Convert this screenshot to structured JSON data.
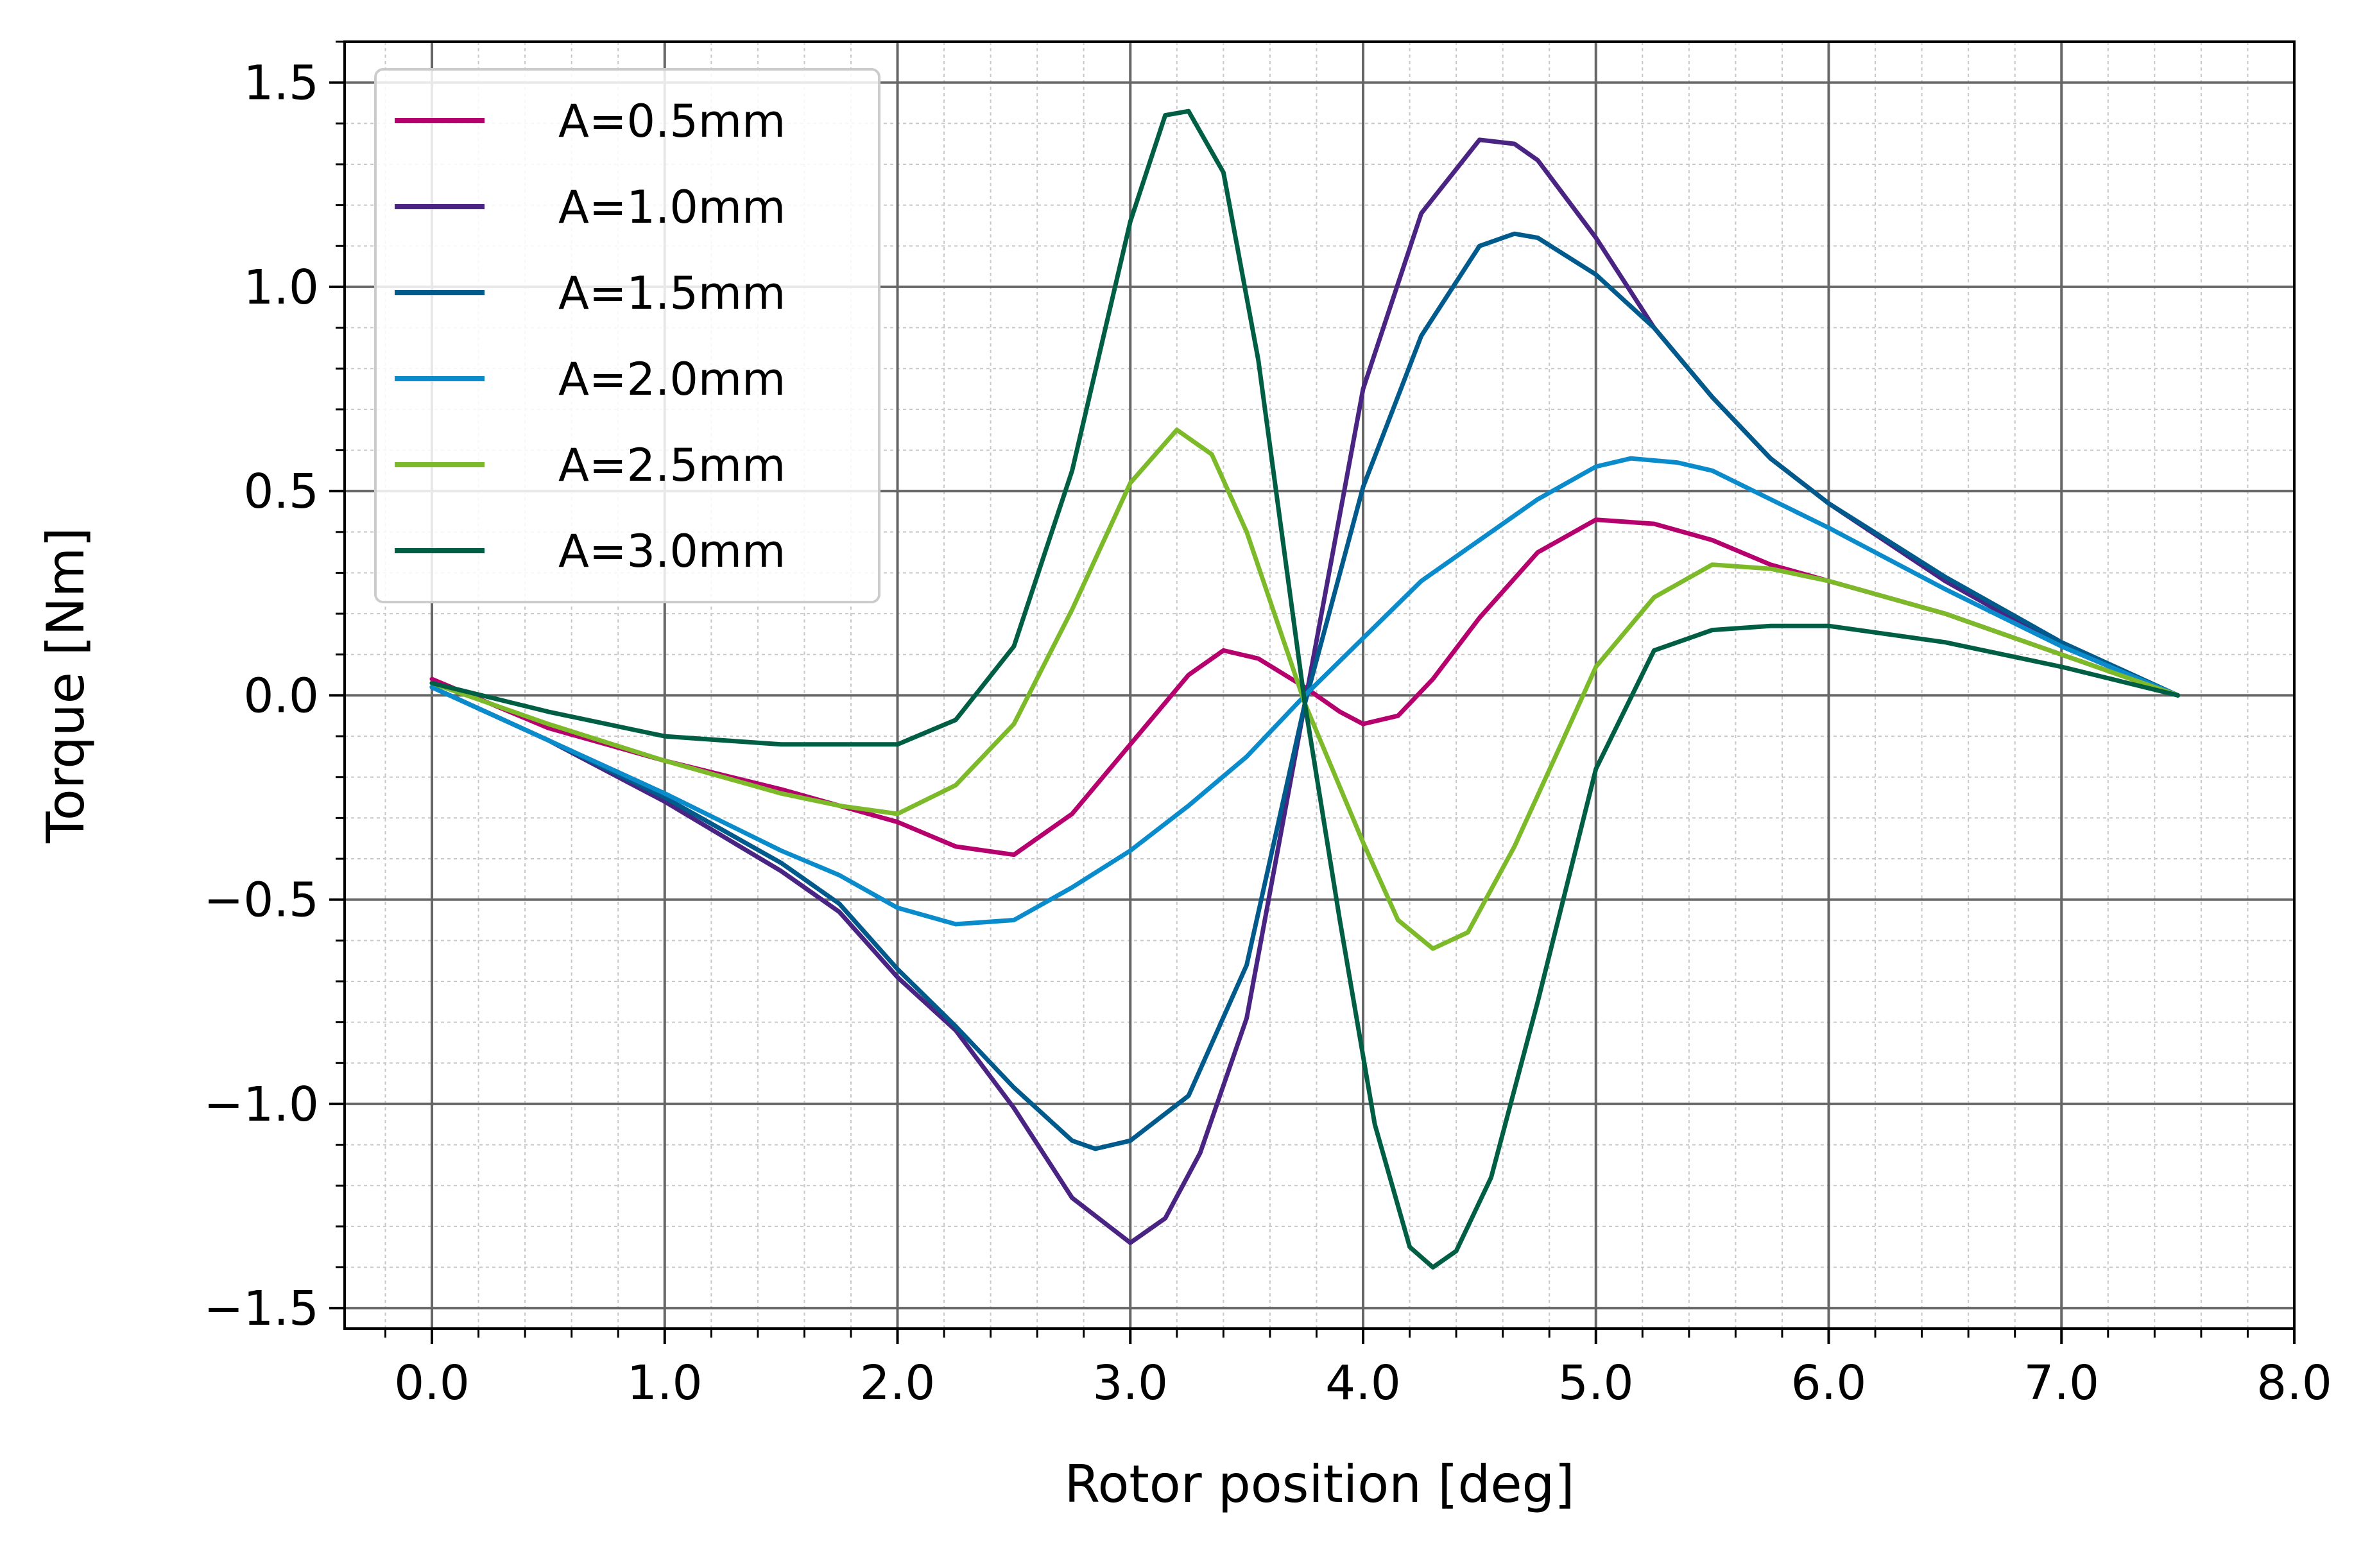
{
  "chart_data": {
    "type": "line",
    "xlabel": "Rotor position [deg]",
    "ylabel": "Torque [Nm]",
    "xlim": [
      -0.375,
      8.0
    ],
    "ylim": [
      -1.55,
      1.6
    ],
    "xticks": [
      "0.0",
      "1.0",
      "2.0",
      "3.0",
      "4.0",
      "5.0",
      "6.0",
      "7.0",
      "8.0"
    ],
    "yticks": [
      "−1.5",
      "−1.0",
      "−0.5",
      "0.0",
      "0.5",
      "1.0",
      "1.5"
    ],
    "grid": true,
    "minor_grid": true,
    "legend_position": "upper-left",
    "series": [
      {
        "name": "A=0.5mm",
        "color": "#b5006e",
        "points": [
          [
            0,
            0.04
          ],
          [
            0.5,
            -0.08
          ],
          [
            1.0,
            -0.16
          ],
          [
            1.5,
            -0.23
          ],
          [
            2.0,
            -0.31
          ],
          [
            2.25,
            -0.37
          ],
          [
            2.5,
            -0.39
          ],
          [
            2.75,
            -0.29
          ],
          [
            3.0,
            -0.12
          ],
          [
            3.25,
            0.05
          ],
          [
            3.4,
            0.11
          ],
          [
            3.55,
            0.09
          ],
          [
            3.75,
            0.02
          ],
          [
            3.9,
            -0.04
          ],
          [
            4.0,
            -0.07
          ],
          [
            4.15,
            -0.05
          ],
          [
            4.3,
            0.04
          ],
          [
            4.5,
            0.19
          ],
          [
            4.75,
            0.35
          ],
          [
            5.0,
            0.43
          ],
          [
            5.25,
            0.42
          ],
          [
            5.5,
            0.38
          ],
          [
            5.75,
            0.32
          ],
          [
            6.0,
            0.28
          ],
          [
            6.5,
            0.2
          ],
          [
            7.0,
            0.1
          ],
          [
            7.5,
            0.0
          ]
        ]
      },
      {
        "name": "A=1.0mm",
        "color": "#4a2482",
        "points": [
          [
            0,
            0.02
          ],
          [
            0.5,
            -0.11
          ],
          [
            1.0,
            -0.26
          ],
          [
            1.5,
            -0.43
          ],
          [
            1.75,
            -0.53
          ],
          [
            2.0,
            -0.69
          ],
          [
            2.25,
            -0.82
          ],
          [
            2.5,
            -1.01
          ],
          [
            2.75,
            -1.23
          ],
          [
            3.0,
            -1.34
          ],
          [
            3.15,
            -1.28
          ],
          [
            3.3,
            -1.12
          ],
          [
            3.5,
            -0.79
          ],
          [
            3.75,
            -0.02
          ],
          [
            4.0,
            0.75
          ],
          [
            4.25,
            1.18
          ],
          [
            4.5,
            1.36
          ],
          [
            4.65,
            1.35
          ],
          [
            4.75,
            1.31
          ],
          [
            5.0,
            1.12
          ],
          [
            5.25,
            0.9
          ],
          [
            5.5,
            0.73
          ],
          [
            5.75,
            0.58
          ],
          [
            6.0,
            0.47
          ],
          [
            6.5,
            0.28
          ],
          [
            7.0,
            0.12
          ],
          [
            7.5,
            0.0
          ]
        ]
      },
      {
        "name": "A=1.5mm",
        "color": "#005a8c",
        "points": [
          [
            0,
            0.02
          ],
          [
            0.5,
            -0.11
          ],
          [
            1.0,
            -0.25
          ],
          [
            1.5,
            -0.41
          ],
          [
            1.75,
            -0.51
          ],
          [
            2.0,
            -0.67
          ],
          [
            2.25,
            -0.81
          ],
          [
            2.5,
            -0.96
          ],
          [
            2.75,
            -1.09
          ],
          [
            2.85,
            -1.11
          ],
          [
            3.0,
            -1.09
          ],
          [
            3.25,
            -0.98
          ],
          [
            3.5,
            -0.66
          ],
          [
            3.75,
            -0.02
          ],
          [
            4.0,
            0.51
          ],
          [
            4.25,
            0.88
          ],
          [
            4.5,
            1.1
          ],
          [
            4.65,
            1.13
          ],
          [
            4.75,
            1.12
          ],
          [
            5.0,
            1.03
          ],
          [
            5.25,
            0.9
          ],
          [
            5.5,
            0.73
          ],
          [
            5.75,
            0.58
          ],
          [
            6.0,
            0.47
          ],
          [
            6.5,
            0.29
          ],
          [
            7.0,
            0.13
          ],
          [
            7.5,
            0.0
          ]
        ]
      },
      {
        "name": "A=2.0mm",
        "color": "#0a8ccc",
        "points": [
          [
            0,
            0.02
          ],
          [
            0.5,
            -0.11
          ],
          [
            1.0,
            -0.24
          ],
          [
            1.5,
            -0.38
          ],
          [
            1.75,
            -0.44
          ],
          [
            2.0,
            -0.52
          ],
          [
            2.25,
            -0.56
          ],
          [
            2.5,
            -0.55
          ],
          [
            2.75,
            -0.47
          ],
          [
            3.0,
            -0.38
          ],
          [
            3.25,
            -0.27
          ],
          [
            3.5,
            -0.15
          ],
          [
            3.75,
            0.0
          ],
          [
            4.0,
            0.14
          ],
          [
            4.25,
            0.28
          ],
          [
            4.5,
            0.38
          ],
          [
            4.75,
            0.48
          ],
          [
            5.0,
            0.56
          ],
          [
            5.15,
            0.58
          ],
          [
            5.35,
            0.57
          ],
          [
            5.5,
            0.55
          ],
          [
            5.75,
            0.48
          ],
          [
            6.0,
            0.41
          ],
          [
            6.5,
            0.26
          ],
          [
            7.0,
            0.12
          ],
          [
            7.5,
            0.0
          ]
        ]
      },
      {
        "name": "A=2.5mm",
        "color": "#7dba2a",
        "points": [
          [
            0,
            0.03
          ],
          [
            0.5,
            -0.07
          ],
          [
            1.0,
            -0.16
          ],
          [
            1.5,
            -0.24
          ],
          [
            1.75,
            -0.27
          ],
          [
            2.0,
            -0.29
          ],
          [
            2.25,
            -0.22
          ],
          [
            2.5,
            -0.07
          ],
          [
            2.75,
            0.21
          ],
          [
            3.0,
            0.52
          ],
          [
            3.2,
            0.65
          ],
          [
            3.35,
            0.59
          ],
          [
            3.5,
            0.4
          ],
          [
            3.75,
            -0.02
          ],
          [
            4.0,
            -0.36
          ],
          [
            4.15,
            -0.55
          ],
          [
            4.3,
            -0.62
          ],
          [
            4.45,
            -0.58
          ],
          [
            4.65,
            -0.37
          ],
          [
            4.85,
            -0.12
          ],
          [
            5.0,
            0.07
          ],
          [
            5.25,
            0.24
          ],
          [
            5.5,
            0.32
          ],
          [
            5.75,
            0.31
          ],
          [
            6.0,
            0.28
          ],
          [
            6.5,
            0.2
          ],
          [
            7.0,
            0.1
          ],
          [
            7.5,
            0.0
          ]
        ]
      },
      {
        "name": "A=3.0mm",
        "color": "#005e45",
        "points": [
          [
            0,
            0.03
          ],
          [
            0.5,
            -0.04
          ],
          [
            1.0,
            -0.1
          ],
          [
            1.5,
            -0.12
          ],
          [
            1.75,
            -0.12
          ],
          [
            2.0,
            -0.12
          ],
          [
            2.25,
            -0.06
          ],
          [
            2.5,
            0.12
          ],
          [
            2.75,
            0.55
          ],
          [
            3.0,
            1.16
          ],
          [
            3.15,
            1.42
          ],
          [
            3.25,
            1.43
          ],
          [
            3.4,
            1.28
          ],
          [
            3.55,
            0.82
          ],
          [
            3.75,
            -0.02
          ],
          [
            3.9,
            -0.55
          ],
          [
            4.05,
            -1.05
          ],
          [
            4.2,
            -1.35
          ],
          [
            4.3,
            -1.4
          ],
          [
            4.4,
            -1.36
          ],
          [
            4.55,
            -1.18
          ],
          [
            4.75,
            -0.75
          ],
          [
            5.0,
            -0.18
          ],
          [
            5.25,
            0.11
          ],
          [
            5.5,
            0.16
          ],
          [
            5.75,
            0.17
          ],
          [
            6.0,
            0.17
          ],
          [
            6.5,
            0.13
          ],
          [
            7.0,
            0.07
          ],
          [
            7.5,
            0.0
          ]
        ]
      }
    ]
  }
}
